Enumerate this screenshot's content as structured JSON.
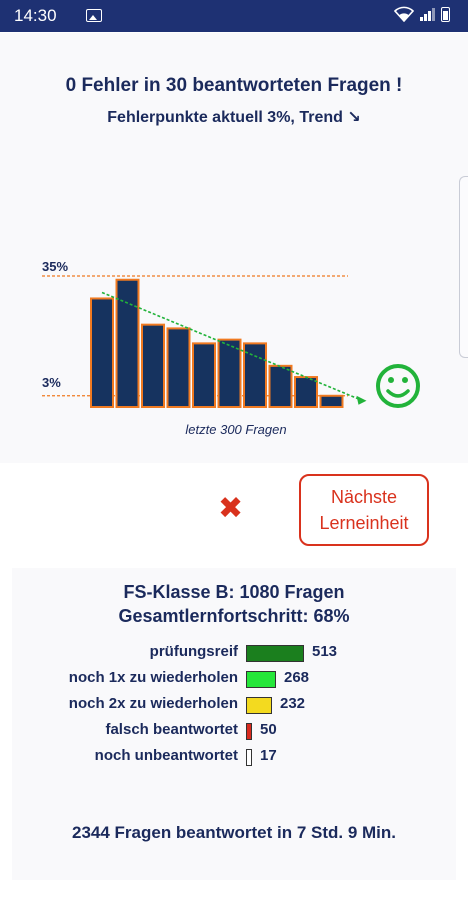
{
  "status_bar": {
    "time": "14:30",
    "icons": [
      "image-icon",
      "wifi-icon",
      "signal-icon",
      "battery-icon"
    ]
  },
  "summary": {
    "headline": "0 Fehler in 30 beantworteten Fragen !",
    "subline": "Fehlerpunkte aktuell 3%,  Trend ↘"
  },
  "chart_data": {
    "type": "bar",
    "xlabel": "letzte 300 Fragen",
    "tick_labels": [
      "35%",
      "3%"
    ],
    "reference_lines": [
      35,
      3
    ],
    "values": [
      29,
      34,
      22,
      21,
      17,
      18,
      17,
      11,
      8,
      3
    ],
    "ylim": [
      0,
      35
    ],
    "trend": "down",
    "colors": {
      "bar_fill": "#16335f",
      "bar_border": "#f07a21",
      "trend_line": "#22b33a",
      "reference_line": "#f07a21"
    },
    "indicator_icon": "smiley-icon"
  },
  "actions": {
    "result_icon": "cross-icon",
    "next_button_line1": "Nächste",
    "next_button_line2": "Lerneinheit"
  },
  "progress": {
    "class_title": "FS-Klasse B: 1080 Fragen",
    "overall_title": "Gesamtlernfortschritt: 68%",
    "rows": [
      {
        "label": "prüfungsreif",
        "value": "513",
        "count": 513,
        "color": "#1b7f1e"
      },
      {
        "label": "noch 1x zu wiederholen",
        "value": "268",
        "count": 268,
        "color": "#25e63a"
      },
      {
        "label": "noch 2x zu wiederholen",
        "value": "232",
        "count": 232,
        "color": "#f3da1f"
      },
      {
        "label": "falsch beantwortet",
        "value": "50",
        "count": 50,
        "color": "#d92a1e"
      },
      {
        "label": "noch unbeantwortet",
        "value": "17",
        "count": 17,
        "color": "#ffffff"
      }
    ]
  },
  "footer": {
    "summary": "2344 Fragen beantwortet in 7 Std. 9 Min."
  }
}
